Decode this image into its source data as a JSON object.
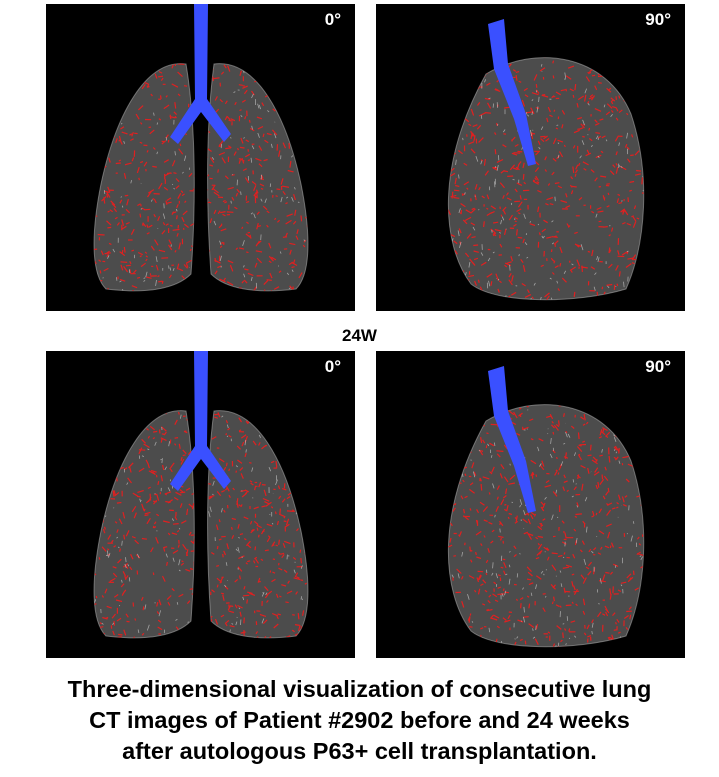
{
  "panels": [
    {
      "label": "0°",
      "view": "frontal"
    },
    {
      "label": "90°",
      "view": "lateral"
    },
    {
      "label": "0°",
      "view": "frontal"
    },
    {
      "label": "90°",
      "view": "lateral"
    }
  ],
  "row_label": "24W",
  "caption": [
    "Three-dimensional visualization of consecutive lung",
    "CT images of Patient #2902 before and 24 weeks",
    "after autologous P63+ cell transplantation."
  ],
  "colors": {
    "vessels": "#e02020",
    "airway": "#3a50ff",
    "lung": "#8a8a8a",
    "background": "#000000"
  }
}
